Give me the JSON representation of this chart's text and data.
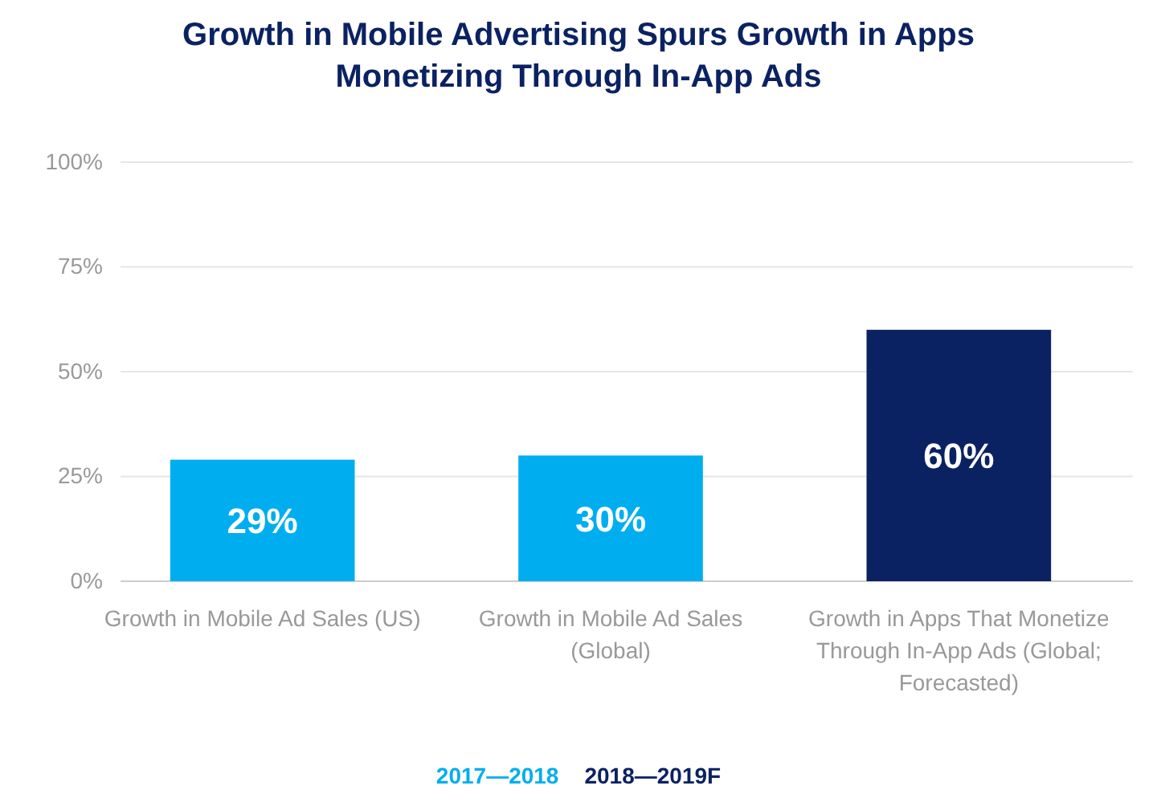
{
  "chart_data": {
    "type": "bar",
    "title": "Growth in Mobile Advertising Spurs Growth in Apps Monetizing Through In-App Ads",
    "categories": [
      "Growth in Mobile Ad Sales (US)",
      "Growth in Mobile Ad Sales (Global)",
      "Growth in Apps That Monetize Through In-App Ads (Global; Forecasted)"
    ],
    "series": [
      {
        "name": "2017—2018",
        "color": "#00aeef",
        "values": [
          29,
          30,
          null
        ],
        "value_labels": [
          "29%",
          "30%",
          null
        ]
      },
      {
        "name": "2018—2019F",
        "color": "#0b2262",
        "values": [
          null,
          null,
          60
        ],
        "value_labels": [
          null,
          null,
          "60%"
        ]
      }
    ],
    "ylim": [
      0,
      100
    ],
    "yticks": [
      {
        "value": 0,
        "label": "0%"
      },
      {
        "value": 25,
        "label": "25%"
      },
      {
        "value": 50,
        "label": "50%"
      },
      {
        "value": 75,
        "label": "75%"
      },
      {
        "value": 100,
        "label": "100%"
      }
    ],
    "grid": "y",
    "legend": "bottom"
  }
}
